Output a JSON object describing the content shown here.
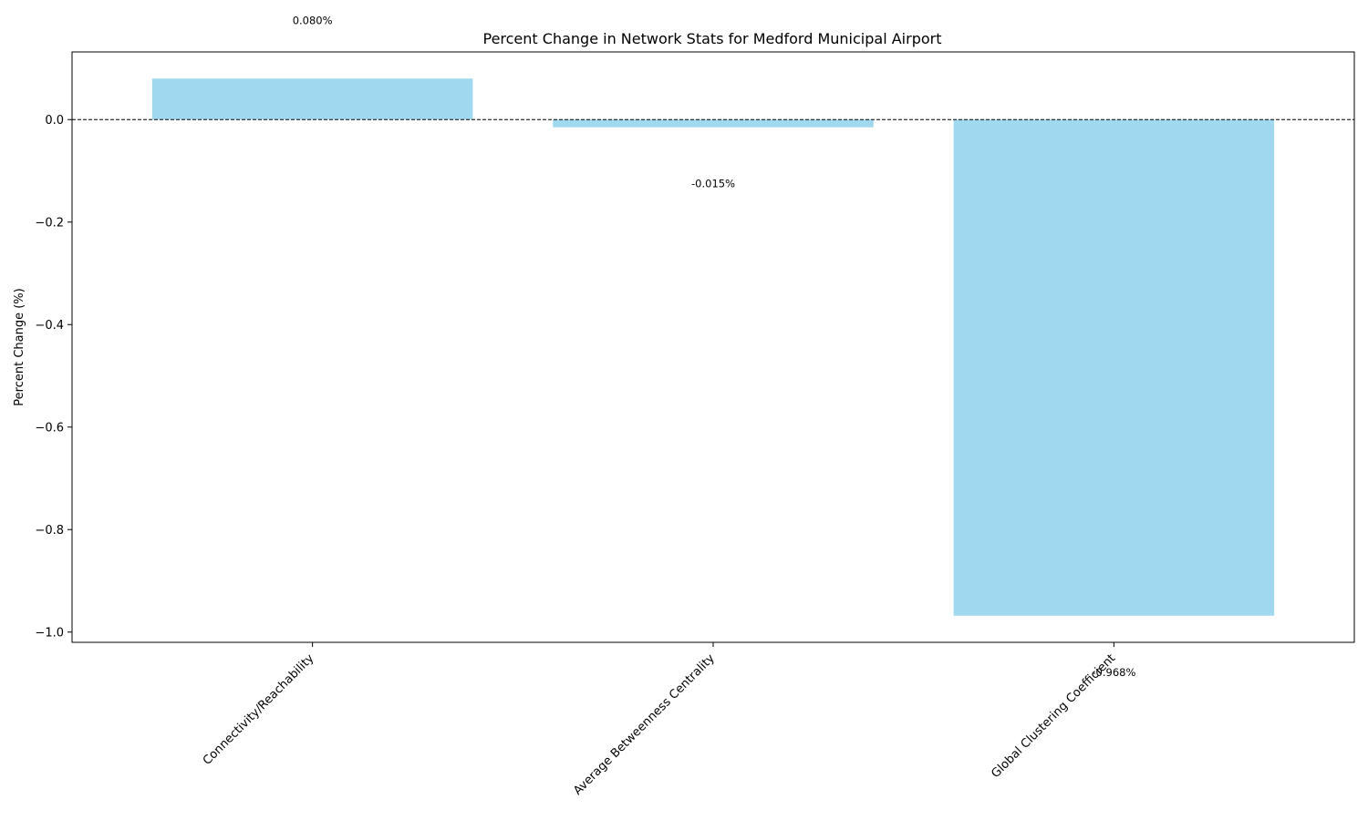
{
  "chart_data": {
    "type": "bar",
    "title": "Percent Change in Network Stats for Medford Municipal Airport",
    "xlabel": "",
    "ylabel": "Percent Change (%)",
    "categories": [
      "Connectivity/Reachability",
      "Average Betweenness Centrality",
      "Global Clustering Coefficient"
    ],
    "values": [
      0.08,
      -0.015,
      -0.968
    ],
    "data_labels": [
      "0.080%",
      "-0.015%",
      "-0.968%"
    ],
    "ylim": [
      -1.02,
      0.132
    ],
    "yticks": [
      0.0,
      -0.2,
      -0.4,
      -0.6,
      -0.8,
      -1.0
    ],
    "ytick_labels": [
      "0.0",
      "−0.2",
      "−0.4",
      "−0.6",
      "−0.8",
      "−1.0"
    ],
    "bar_color": "#a0d8ef",
    "zero_line": "dashed",
    "grid": false,
    "legend": "none"
  }
}
